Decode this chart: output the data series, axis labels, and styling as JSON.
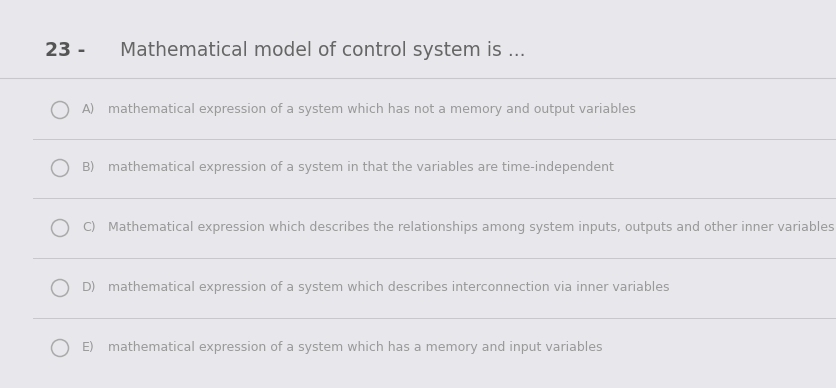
{
  "question_number": "23 -",
  "question_text": "Mathematical model of control system is ...",
  "options": [
    {
      "label": "A)",
      "text": "mathematical expression of a system which has not a memory and output variables"
    },
    {
      "label": "B)",
      "text": "mathematical expression of a system in that the variables are time-independent"
    },
    {
      "label": "C)",
      "text": "Mathematical expression which describes the relationships among system inputs, outputs and other inner variables"
    },
    {
      "label": "D)",
      "text": "mathematical expression of a system which describes interconnection via inner variables"
    },
    {
      "label": "E)",
      "text": "mathematical expression of a system which has a memory and input variables"
    }
  ],
  "bg_color": "#e8e8ec",
  "header_bg_color": "#f5f5e0",
  "divider_color": "#c8c8cc",
  "text_color": "#999999",
  "question_text_color": "#666666",
  "question_num_color": "#555555",
  "circle_color": "#aaaaaa",
  "fig_width": 8.37,
  "fig_height": 3.88,
  "dpi": 100
}
